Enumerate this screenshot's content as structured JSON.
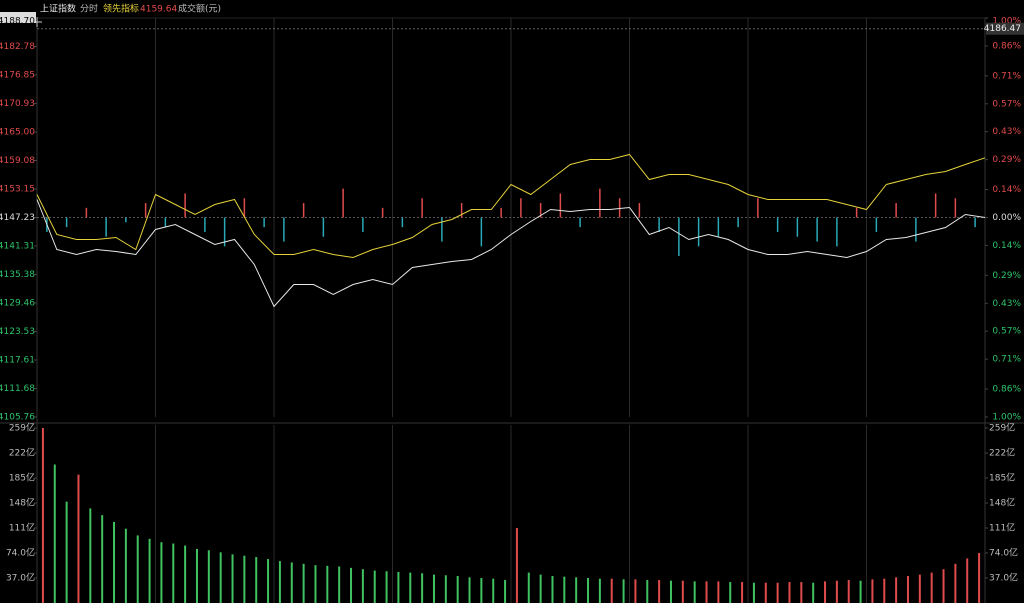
{
  "chart_data": [
    {
      "type": "line",
      "period": "分时",
      "last_value": 4159.64,
      "crosshair_value": 4186.47,
      "xlim": [
        0,
        240
      ],
      "xticks": [
        30,
        60,
        90,
        120,
        150,
        180,
        210
      ],
      "x": [
        0,
        5,
        10,
        15,
        20,
        25,
        30,
        35,
        40,
        45,
        50,
        55,
        60,
        65,
        70,
        75,
        80,
        85,
        90,
        95,
        100,
        105,
        110,
        115,
        120,
        125,
        130,
        135,
        140,
        145,
        150,
        155,
        160,
        165,
        170,
        175,
        180,
        185,
        190,
        195,
        200,
        205,
        210,
        215,
        220,
        225,
        230,
        235,
        240
      ],
      "ylim": [
        4105.76,
        4188.7
      ],
      "yticks": [
        {
          "value": 4188.7,
          "label": "4188.70"
        },
        4182.78,
        4176.85,
        4170.93,
        {
          "value": 4165.0,
          "label": "4165.00"
        },
        4159.08,
        4153.15,
        4147.23,
        4141.31,
        4135.38,
        4129.46,
        4123.53,
        4117.61,
        4111.68,
        4105.76
      ],
      "y2lim": [
        -1.0,
        1.0
      ],
      "y2ticks": [
        {
          "value": 1.0,
          "label": "1.00%"
        },
        {
          "value": 0.86,
          "label": "0.86%"
        },
        {
          "value": 0.71,
          "label": "0.71%"
        },
        {
          "value": 0.57,
          "label": "0.57%"
        },
        {
          "value": 0.43,
          "label": "0.43%"
        },
        {
          "value": 0.29,
          "label": "0.29%"
        },
        {
          "value": 0.14,
          "label": "0.14%"
        },
        {
          "value": 0,
          "label": "0.00%"
        },
        {
          "value": -0.14,
          "label": "0.14%"
        },
        {
          "value": -0.29,
          "label": "0.29%"
        },
        {
          "value": -0.43,
          "label": "0.43%"
        },
        {
          "value": -0.57,
          "label": "0.57%"
        },
        {
          "value": -0.71,
          "label": "0.71%"
        },
        {
          "value": -0.86,
          "label": "0.86%"
        },
        {
          "value": -1.0,
          "label": "1.00%"
        }
      ],
      "series": [
        {
          "name": "上证指数",
          "color": "#e8e8e8",
          "values": [
            4150.97,
            4140.58,
            4139.54,
            4140.58,
            4140.16,
            4139.54,
            4144.74,
            4145.77,
            4143.7,
            4141.62,
            4142.66,
            4137.46,
            4128.73,
            4133.3,
            4133.3,
            4131.22,
            4133.3,
            4134.34,
            4133.3,
            4136.83,
            4137.46,
            4138.08,
            4138.5,
            4140.58,
            4143.7,
            4146.4,
            4148.89,
            4148.48,
            4148.89,
            4148.89,
            4149.31,
            4143.7,
            4145.15,
            4142.66,
            4143.7,
            4142.66,
            4140.58,
            4139.54,
            4139.54,
            4140.16,
            4139.54,
            4138.91,
            4140.16,
            4142.66,
            4143.07,
            4144.11,
            4145.15,
            4147.85,
            4147.23
          ]
        },
        {
          "name": "领先指标",
          "color": "#e6d23a",
          "values": [
            4152.01,
            4143.7,
            4142.66,
            4142.66,
            4143.07,
            4140.58,
            4152.01,
            4149.93,
            4147.85,
            4149.93,
            4150.97,
            4143.7,
            4139.54,
            4139.54,
            4140.58,
            4139.54,
            4138.91,
            4140.58,
            4141.62,
            4143.07,
            4145.77,
            4146.81,
            4148.89,
            4148.89,
            4154.09,
            4152.01,
            4155.13,
            4158.25,
            4159.29,
            4159.29,
            4160.33,
            4155.13,
            4156.17,
            4156.17,
            4155.13,
            4154.09,
            4152.01,
            4150.97,
            4150.97,
            4150.97,
            4150.97,
            4149.93,
            4148.89,
            4154.09,
            4155.13,
            4156.17,
            4156.79,
            4158.25,
            4159.64
          ]
        }
      ],
      "bars": [
        -3,
        -2,
        2,
        -4,
        -1,
        3,
        -2,
        5,
        -3,
        -6,
        4,
        -2,
        -5,
        3,
        -4,
        6,
        -3,
        2,
        -2,
        4,
        -5,
        3,
        -6,
        2,
        4,
        3,
        5,
        -2,
        6,
        4,
        3,
        -3,
        -8,
        -6,
        -4,
        -2,
        4,
        -3,
        -4,
        -5,
        -6,
        2,
        -3,
        3,
        -5,
        5,
        4,
        -2
      ],
      "up_color": "#e04b4b",
      "down_color": "#2aa9b8"
    },
    {
      "type": "bar",
      "title": "成交额(元)",
      "ylim": [
        0,
        259
      ],
      "yticks": [
        {
          "value": 259,
          "label": "259亿"
        },
        {
          "value": 222,
          "label": "222亿"
        },
        {
          "value": 185,
          "label": "185亿"
        },
        {
          "value": 148,
          "label": "148亿"
        },
        {
          "value": 111,
          "label": "111亿"
        },
        {
          "value": 74,
          "label": "74.0亿"
        },
        {
          "value": 37,
          "label": "37.0亿"
        }
      ],
      "values": [
        259,
        205,
        150,
        190,
        140,
        130,
        120,
        110,
        100,
        95,
        90,
        88,
        85,
        80,
        78,
        75,
        72,
        70,
        68,
        65,
        62,
        60,
        58,
        56,
        55,
        54,
        52,
        50,
        48,
        47,
        46,
        45,
        44,
        42,
        41,
        40,
        38,
        37,
        36,
        34,
        111,
        45,
        42,
        40,
        39,
        38,
        37,
        36,
        36,
        35,
        35,
        34,
        34,
        33,
        33,
        32,
        32,
        32,
        31,
        31,
        30,
        30,
        30,
        31,
        31,
        30,
        32,
        33,
        34,
        33,
        35,
        36,
        38,
        40,
        42,
        45,
        50,
        58,
        66,
        74
      ],
      "up_color": "#e04b4b",
      "down_color": "#3fc25f"
    }
  ]
}
